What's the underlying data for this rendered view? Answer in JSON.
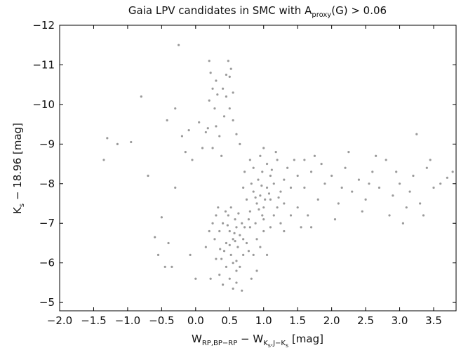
{
  "chart_data": {
    "type": "scatter",
    "title": [
      {
        "text": "Gaia LPV candidates in SMC with A",
        "level": 0
      },
      {
        "text": "proxy",
        "level": 1
      },
      {
        "text": "(G) > 0.06",
        "level": 0
      }
    ],
    "x_label": [
      {
        "text": "W",
        "level": 0
      },
      {
        "text": "RP,BP−RP",
        "level": 1
      },
      {
        "text": " − W",
        "level": 0
      },
      {
        "text": "K",
        "level": 1
      },
      {
        "text": "s",
        "level": 2
      },
      {
        "text": ",J−K",
        "level": 1
      },
      {
        "text": "s",
        "level": 2
      },
      {
        "text": "  [mag]",
        "level": 0
      }
    ],
    "y_label": [
      {
        "text": "K",
        "level": 0
      },
      {
        "text": "s",
        "level": 1
      },
      {
        "text": " − 18.96  [mag]",
        "level": 0
      }
    ],
    "color": "#9a9a9a",
    "xlim": [
      -2,
      3.83
    ],
    "ylim": [
      -12,
      -4.79
    ],
    "y_inverted": true,
    "xticks": [
      {
        "value": -2,
        "label": "−2.0"
      },
      {
        "value": -1.5,
        "label": "−1.5"
      },
      {
        "value": -1,
        "label": "−1.0"
      },
      {
        "value": -0.5,
        "label": "−0.5"
      },
      {
        "value": 0,
        "label": "0.0"
      },
      0.5,
      {
        "value": 1,
        "label": "1.0"
      },
      1.5,
      {
        "value": 2,
        "label": "2.0"
      },
      2.5,
      {
        "value": 3,
        "label": "3.0"
      },
      3.5
    ],
    "yticks": [
      {
        "value": -12,
        "label": "−12"
      },
      {
        "value": -11,
        "label": "−11"
      },
      {
        "value": -10,
        "label": "−10"
      },
      {
        "value": -9,
        "label": "−9"
      },
      {
        "value": -8,
        "label": "−8"
      },
      {
        "value": -7,
        "label": "−7"
      },
      {
        "value": -6,
        "label": "−6"
      },
      {
        "value": -5,
        "label": "−5"
      }
    ],
    "x": [
      -1.35,
      -1.3,
      -1.15,
      -0.95,
      -0.8,
      -0.7,
      -0.6,
      -0.55,
      -0.5,
      -0.45,
      -0.4,
      -0.35,
      -0.3,
      -0.25,
      -0.3,
      -0.42,
      -0.1,
      -0.15,
      -0.05,
      -0.2,
      -0.08,
      0.05,
      0.1,
      0.15,
      0.0,
      0.2,
      0.22,
      0.25,
      0.3,
      0.2,
      0.28,
      0.18,
      0.35,
      0.4,
      0.45,
      0.5,
      0.48,
      0.52,
      0.45,
      0.5,
      0.55,
      0.42,
      0.6,
      0.38,
      0.25,
      0.3,
      0.55,
      0.65,
      0.32,
      0.5,
      0.55,
      0.6,
      0.45,
      0.65,
      0.4,
      0.58,
      0.62,
      0.35,
      0.7,
      0.52,
      0.48,
      0.55,
      0.6,
      0.42,
      0.68,
      0.5,
      0.45,
      0.38,
      0.72,
      0.3,
      0.28,
      0.33,
      0.6,
      0.65,
      0.4,
      0.55,
      0.7,
      0.75,
      0.8,
      0.78,
      0.52,
      0.47,
      0.57,
      0.63,
      0.36,
      0.25,
      0.2,
      0.15,
      0.85,
      0.9,
      0.82,
      0.68,
      0.44,
      0.5,
      0.58,
      0.6,
      0.35,
      0.3,
      0.22,
      0.9,
      0.95,
      1.0,
      0.85,
      1.05,
      0.8,
      0.92,
      1.1,
      0.98,
      0.75,
      1.15,
      1.0,
      0.88,
      1.2,
      0.82,
      1.05,
      0.95,
      1.1,
      0.7,
      1.25,
      1.0,
      0.9,
      1.15,
      0.78,
      1.3,
      1.2,
      0.85,
      1.02,
      0.93,
      1.08,
      0.97,
      1.18,
      1.3,
      1.35,
      0.72,
      1.4,
      1.25,
      1.1,
      0.95,
      1.05,
      1.45,
      1.4,
      1.5,
      1.3,
      0.98,
      0.88,
      1.12,
      1.22,
      0.8,
      1.0,
      1.6,
      1.7,
      1.8,
      1.9,
      2.0,
      2.1,
      2.2,
      2.3,
      2.4,
      2.5,
      2.6,
      2.7,
      2.8,
      2.9,
      3.0,
      3.1,
      3.2,
      3.3,
      3.4,
      3.5,
      3.6,
      3.7,
      3.78,
      1.65,
      1.75,
      2.05,
      2.25,
      2.45,
      2.65,
      2.85,
      3.05,
      3.25,
      3.45,
      1.55,
      1.85,
      2.15,
      2.55,
      2.95,
      3.15,
      3.35,
      1.5,
      1.6,
      1.7
    ],
    "values": [
      -8.6,
      -9.15,
      -9.0,
      -9.05,
      -10.2,
      -8.2,
      -6.65,
      -6.2,
      -7.15,
      -5.9,
      -6.5,
      -5.9,
      -7.9,
      -11.5,
      -9.9,
      -9.6,
      -9.35,
      -8.8,
      -8.6,
      -9.2,
      -6.2,
      -9.55,
      -8.9,
      -9.3,
      -5.6,
      -11.1,
      -10.8,
      -10.4,
      -10.6,
      -10.1,
      -9.9,
      -9.4,
      -9.2,
      -10.4,
      -10.75,
      -10.7,
      -11.1,
      -10.9,
      -10.2,
      -9.9,
      -9.6,
      -9.7,
      -9.25,
      -8.7,
      -8.9,
      -9.45,
      -10.3,
      -9.0,
      -10.25,
      -6.8,
      -6.6,
      -6.9,
      -6.5,
      -6.7,
      -7.0,
      -7.1,
      -6.4,
      -6.8,
      -6.6,
      -6.2,
      -7.2,
      -6.0,
      -5.8,
      -6.3,
      -7.0,
      -5.6,
      -5.9,
      -6.1,
      -6.9,
      -7.2,
      -6.6,
      -7.4,
      -5.5,
      -5.9,
      -5.45,
      -5.35,
      -6.2,
      -6.5,
      -6.9,
      -6.3,
      -7.4,
      -6.95,
      -6.75,
      -7.25,
      -6.35,
      -7.0,
      -6.8,
      -6.4,
      -6.2,
      -5.8,
      -5.6,
      -5.3,
      -7.3,
      -6.45,
      -6.55,
      -6.05,
      -5.7,
      -6.1,
      -5.6,
      -7.5,
      -7.7,
      -7.4,
      -7.8,
      -7.9,
      -7.3,
      -8.1,
      -7.6,
      -8.3,
      -7.6,
      -8.0,
      -7.1,
      -7.0,
      -7.4,
      -8.0,
      -8.5,
      -8.7,
      -8.2,
      -7.9,
      -7.8,
      -6.8,
      -6.6,
      -7.2,
      -7.1,
      -8.1,
      -8.6,
      -8.4,
      -7.6,
      -7.35,
      -7.75,
      -7.95,
      -8.8,
      -7.5,
      -8.4,
      -8.3,
      -7.9,
      -7.0,
      -6.9,
      -6.4,
      -6.2,
      -8.6,
      -7.2,
      -8.2,
      -6.8,
      -7.2,
      -7.65,
      -8.35,
      -7.65,
      -8.6,
      -8.9,
      -7.9,
      -8.3,
      -7.6,
      -8.0,
      -8.2,
      -7.5,
      -8.4,
      -7.8,
      -8.1,
      -7.6,
      -8.3,
      -7.9,
      -8.6,
      -7.7,
      -8.0,
      -7.4,
      -8.2,
      -7.5,
      -8.4,
      -7.9,
      -8.0,
      -8.15,
      -8.3,
      -7.2,
      -8.7,
      -7.1,
      -8.8,
      -7.3,
      -8.7,
      -7.2,
      -7.0,
      -9.25,
      -8.6,
      -6.9,
      -8.5,
      -7.9,
      -8.0,
      -8.3,
      -7.8,
      -7.2,
      -7.4,
      -8.6,
      -6.9
    ]
  }
}
